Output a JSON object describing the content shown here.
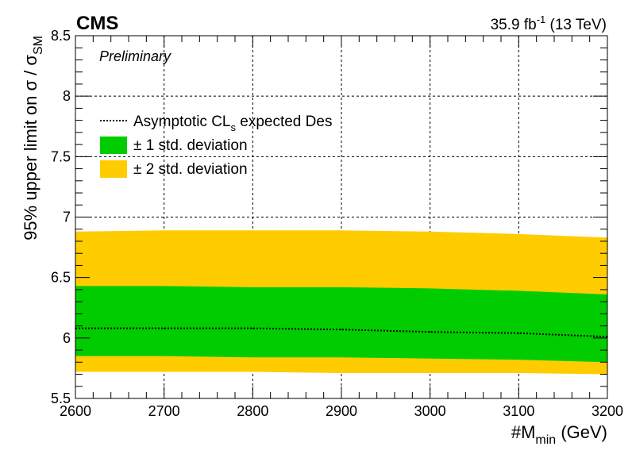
{
  "header": {
    "experiment": "CMS",
    "status": "Preliminary",
    "lumi": "35.9",
    "lumi_unit": "fb",
    "lumi_exp": "-1",
    "energy": "(13 TeV)"
  },
  "chart_data": {
    "type": "line",
    "xlabel_main": "#M",
    "xlabel_sub": "min",
    "xlabel_unit": "(GeV)",
    "ylabel_main": "95% upper limit on σ / σ",
    "ylabel_sub": "SM",
    "xlim": [
      2600,
      3200
    ],
    "ylim": [
      5.5,
      8.5
    ],
    "xticks": [
      2600,
      2700,
      2800,
      2900,
      3000,
      3100,
      3200
    ],
    "yticks": [
      5.5,
      6,
      6.5,
      7,
      7.5,
      8,
      8.5
    ],
    "ytick_labels": [
      "5.5",
      "6",
      "6.5",
      "7",
      "7.5",
      "8",
      "8.5"
    ],
    "grid": true,
    "legend_position": "top-left",
    "x": [
      2600,
      2700,
      2800,
      2900,
      3000,
      3100,
      3200
    ],
    "series": [
      {
        "name": "Asymptotic CL",
        "name_sub": "s",
        "name_suffix": " expected Des",
        "kind": "line",
        "style": "dotted",
        "color": "#000000",
        "values": [
          6.08,
          6.08,
          6.08,
          6.07,
          6.05,
          6.04,
          6.01
        ]
      },
      {
        "name": "± 1 std. deviation",
        "kind": "band",
        "color": "#00cc00",
        "lower": [
          5.85,
          5.85,
          5.84,
          5.84,
          5.83,
          5.82,
          5.8
        ],
        "upper": [
          6.43,
          6.43,
          6.42,
          6.42,
          6.41,
          6.39,
          6.36
        ]
      },
      {
        "name": "± 2 std. deviation",
        "kind": "band",
        "color": "#ffcc00",
        "lower": [
          5.72,
          5.72,
          5.72,
          5.71,
          5.71,
          5.71,
          5.7
        ],
        "upper": [
          6.88,
          6.89,
          6.89,
          6.89,
          6.88,
          6.86,
          6.83
        ]
      }
    ]
  }
}
